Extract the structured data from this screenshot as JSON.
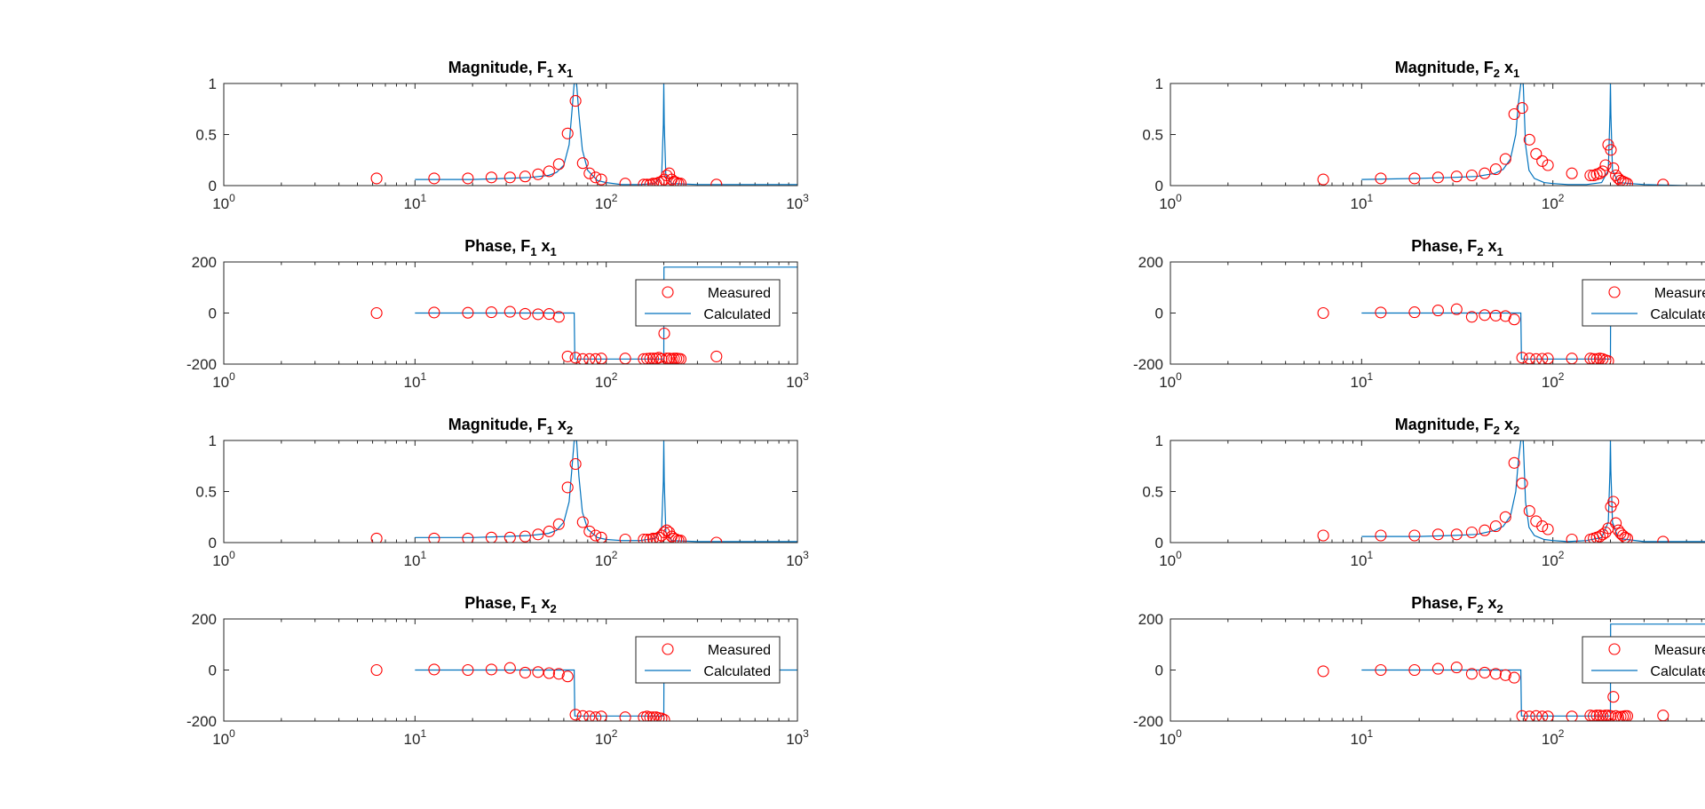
{
  "chart_data": [
    {
      "type": "scatter",
      "title_main": "Magnitude, F",
      "title_f_sub": "1",
      "title_x": " x",
      "title_x_sub": "1",
      "xscale": "log",
      "xlim": [
        1,
        1000
      ],
      "ylim": [
        0,
        1
      ],
      "yticks": [
        "0",
        "0.5",
        "1"
      ],
      "ytick_values": [
        0,
        0.5,
        1
      ],
      "legend": null,
      "measured": {
        "x": [
          6.3,
          12.6,
          18.9,
          25.1,
          31.4,
          37.7,
          44,
          50.3,
          56.5,
          62.8,
          69.1,
          75.4,
          81.7,
          88,
          94.2,
          125.7,
          157.1,
          163.4,
          169.6,
          175.9,
          182.2,
          188.5,
          194.8,
          201.1,
          207.3,
          213.6,
          219.9,
          226.2,
          232.5,
          238.8,
          245,
          377
        ],
        "y": [
          0.07,
          0.07,
          0.07,
          0.08,
          0.08,
          0.09,
          0.11,
          0.14,
          0.21,
          0.51,
          0.83,
          0.22,
          0.12,
          0.08,
          0.06,
          0.02,
          0.01,
          0.01,
          0.01,
          0.02,
          0.02,
          0.03,
          0.04,
          0.06,
          0.1,
          0.12,
          0.06,
          0.04,
          0.03,
          0.02,
          0.02,
          0.01
        ]
      },
      "calculated": {
        "x": [
          10,
          20,
          30,
          40,
          50,
          55,
          60,
          64,
          66,
          68,
          69,
          70,
          72,
          75,
          80,
          90,
          100,
          120,
          150,
          180,
          195,
          199,
          200,
          201,
          205,
          220,
          300,
          500,
          1000
        ],
        "y": [
          0.06,
          0.06,
          0.07,
          0.08,
          0.1,
          0.13,
          0.2,
          0.4,
          0.7,
          1,
          1,
          1,
          0.7,
          0.35,
          0.15,
          0.05,
          0.03,
          0.01,
          0.01,
          0.02,
          0.1,
          0.6,
          1,
          0.6,
          0.1,
          0.02,
          0.01,
          0.01,
          0.01
        ]
      }
    },
    {
      "type": "scatter",
      "title_main": "Magnitude, F",
      "title_f_sub": "2",
      "title_x": " x",
      "title_x_sub": "1",
      "xscale": "log",
      "xlim": [
        1,
        1000
      ],
      "ylim": [
        0,
        1
      ],
      "yticks": [
        "0",
        "0.5",
        "1"
      ],
      "ytick_values": [
        0,
        0.5,
        1
      ],
      "legend": null,
      "measured": {
        "x": [
          6.3,
          12.6,
          18.9,
          25.1,
          31.4,
          37.7,
          44,
          50.3,
          56.5,
          62.8,
          69.1,
          75.4,
          81.7,
          88,
          94.2,
          125.7,
          157.1,
          163.4,
          169.6,
          175.9,
          182.2,
          188.5,
          194.8,
          201.1,
          207.3,
          213.6,
          219.9,
          226.2,
          232.5,
          238.8,
          245,
          377
        ],
        "y": [
          0.06,
          0.07,
          0.07,
          0.08,
          0.09,
          0.1,
          0.12,
          0.16,
          0.26,
          0.7,
          0.76,
          0.45,
          0.31,
          0.24,
          0.2,
          0.12,
          0.1,
          0.1,
          0.11,
          0.12,
          0.14,
          0.2,
          0.4,
          0.35,
          0.17,
          0.1,
          0.07,
          0.05,
          0.04,
          0.03,
          0.02,
          0.01
        ]
      },
      "calculated": {
        "x": [
          10,
          20,
          30,
          40,
          50,
          55,
          60,
          64,
          66,
          68,
          69,
          70,
          72,
          75,
          80,
          90,
          100,
          120,
          150,
          180,
          195,
          199,
          200,
          201,
          205,
          220,
          300,
          500,
          1000
        ],
        "y": [
          0.06,
          0.07,
          0.08,
          0.09,
          0.12,
          0.16,
          0.26,
          0.5,
          0.8,
          1,
          1,
          1,
          0.4,
          0.15,
          0.07,
          0.03,
          0.02,
          0.01,
          0.01,
          0.03,
          0.15,
          0.7,
          1,
          0.7,
          0.15,
          0.03,
          0.01,
          0,
          0
        ]
      }
    },
    {
      "type": "scatter",
      "title_main": "Phase, F",
      "title_f_sub": "1",
      "title_x": " x",
      "title_x_sub": "1",
      "xscale": "log",
      "xlim": [
        1,
        1000
      ],
      "ylim": [
        -200,
        200
      ],
      "yticks": [
        "-200",
        "0",
        "200"
      ],
      "ytick_values": [
        -200,
        0,
        200
      ],
      "legend": {
        "measured": "Measured",
        "calculated": "Calculated"
      },
      "measured": {
        "x": [
          6.3,
          12.6,
          18.9,
          25.1,
          31.4,
          37.7,
          44,
          50.3,
          56.5,
          62.8,
          69.1,
          75.4,
          81.7,
          88,
          94.2,
          125.7,
          157.1,
          163.4,
          169.6,
          175.9,
          182.2,
          188.5,
          194.8,
          201.1,
          207.3,
          213.6,
          219.9,
          226.2,
          232.5,
          238.8,
          245,
          377
        ],
        "y": [
          0,
          2,
          1,
          3,
          5,
          -3,
          -5,
          -4,
          -15,
          -170,
          -175,
          -180,
          -180,
          -180,
          -178,
          -178,
          -180,
          -179,
          -178,
          -178,
          -178,
          -175,
          -180,
          -80,
          -178,
          -178,
          -180,
          -178,
          -178,
          -179,
          -180,
          -170
        ]
      },
      "calculated": {
        "x": [
          10,
          68,
          68.5,
          145,
          145.5,
          200,
          200.5,
          1000
        ],
        "y": [
          0,
          0,
          -180,
          -180,
          -180,
          -180,
          180,
          180
        ]
      }
    },
    {
      "type": "scatter",
      "title_main": "Phase, F",
      "title_f_sub": "2",
      "title_x": " x",
      "title_x_sub": "1",
      "xscale": "log",
      "xlim": [
        1,
        1000
      ],
      "ylim": [
        -200,
        200
      ],
      "yticks": [
        "-200",
        "0",
        "200"
      ],
      "ytick_values": [
        -200,
        0,
        200
      ],
      "legend": {
        "measured": "Measured",
        "calculated": "Calculated"
      },
      "measured": {
        "x": [
          6.3,
          12.6,
          18.9,
          25.1,
          31.4,
          37.7,
          44,
          50.3,
          56.5,
          62.8,
          69.1,
          75.4,
          81.7,
          88,
          94.2,
          125.7,
          157.1,
          163.4,
          169.6,
          175.9,
          182.2,
          188.5,
          194.8
        ],
        "y": [
          0,
          2,
          3,
          10,
          15,
          -15,
          -8,
          -10,
          -12,
          -25,
          -175,
          -178,
          -180,
          -179,
          -178,
          -178,
          -178,
          -180,
          -180,
          -178,
          -180,
          -185,
          -188
        ]
      },
      "calculated": {
        "x": [
          10,
          68,
          68.5,
          200,
          200.5,
          1000
        ],
        "y": [
          0,
          0,
          -180,
          -180,
          0,
          0
        ]
      }
    },
    {
      "type": "scatter",
      "title_main": "Magnitude, F",
      "title_f_sub": "1",
      "title_x": " x",
      "title_x_sub": "2",
      "xscale": "log",
      "xlim": [
        1,
        1000
      ],
      "ylim": [
        0,
        1
      ],
      "yticks": [
        "0",
        "0.5",
        "1"
      ],
      "ytick_values": [
        0,
        0.5,
        1
      ],
      "legend": null,
      "measured": {
        "x": [
          6.3,
          12.6,
          18.9,
          25.1,
          31.4,
          37.7,
          44,
          50.3,
          56.5,
          62.8,
          69.1,
          75.4,
          81.7,
          88,
          94.2,
          125.7,
          157.1,
          163.4,
          169.6,
          175.9,
          182.2,
          188.5,
          194.8,
          201.1,
          207.3,
          213.6,
          219.9,
          226.2,
          232.5,
          238.8,
          245,
          377
        ],
        "y": [
          0.04,
          0.04,
          0.04,
          0.05,
          0.05,
          0.06,
          0.08,
          0.11,
          0.18,
          0.54,
          0.77,
          0.2,
          0.11,
          0.07,
          0.05,
          0.03,
          0.03,
          0.03,
          0.03,
          0.04,
          0.04,
          0.05,
          0.07,
          0.1,
          0.12,
          0.1,
          0.06,
          0.04,
          0.03,
          0.02,
          0.02,
          0
        ]
      },
      "calculated": {
        "x": [
          10,
          20,
          30,
          40,
          50,
          55,
          60,
          64,
          66,
          68,
          69,
          70,
          72,
          75,
          80,
          90,
          100,
          120,
          150,
          180,
          195,
          199,
          200,
          201,
          205,
          220,
          300,
          500,
          1000
        ],
        "y": [
          0.05,
          0.05,
          0.06,
          0.07,
          0.09,
          0.12,
          0.2,
          0.4,
          0.7,
          1,
          1,
          1,
          0.65,
          0.3,
          0.13,
          0.05,
          0.03,
          0.02,
          0.02,
          0.04,
          0.15,
          0.6,
          1,
          0.6,
          0.1,
          0.02,
          0.01,
          0.01,
          0.01
        ]
      }
    },
    {
      "type": "scatter",
      "title_main": "Magnitude, F",
      "title_f_sub": "2",
      "title_x": " x",
      "title_x_sub": "2",
      "xscale": "log",
      "xlim": [
        1,
        1000
      ],
      "ylim": [
        0,
        1
      ],
      "yticks": [
        "0",
        "0.5",
        "1"
      ],
      "ytick_values": [
        0,
        0.5,
        1
      ],
      "legend": null,
      "measured": {
        "x": [
          6.3,
          12.6,
          18.9,
          25.1,
          31.4,
          37.7,
          44,
          50.3,
          56.5,
          62.8,
          69.1,
          75.4,
          81.7,
          88,
          94.2,
          125.7,
          157.1,
          163.4,
          169.6,
          175.9,
          182.2,
          188.5,
          194.8,
          201.1,
          207.3,
          213.6,
          219.9,
          226.2,
          232.5,
          238.8,
          245,
          377
        ],
        "y": [
          0.07,
          0.07,
          0.07,
          0.08,
          0.08,
          0.1,
          0.12,
          0.16,
          0.25,
          0.78,
          0.58,
          0.31,
          0.21,
          0.16,
          0.13,
          0.03,
          0.03,
          0.04,
          0.05,
          0.06,
          0.08,
          0.1,
          0.14,
          0.35,
          0.4,
          0.19,
          0.12,
          0.09,
          0.07,
          0.05,
          0.04,
          0.01
        ]
      },
      "calculated": {
        "x": [
          10,
          20,
          30,
          40,
          50,
          55,
          60,
          64,
          66,
          68,
          69,
          70,
          72,
          75,
          80,
          90,
          100,
          120,
          150,
          180,
          195,
          199,
          200,
          201,
          205,
          220,
          300,
          500,
          1000
        ],
        "y": [
          0.06,
          0.06,
          0.07,
          0.08,
          0.12,
          0.16,
          0.26,
          0.5,
          0.8,
          1,
          1,
          1,
          0.4,
          0.15,
          0.07,
          0.03,
          0.02,
          0.01,
          0.02,
          0.05,
          0.2,
          0.7,
          1,
          0.7,
          0.2,
          0.04,
          0.01,
          0.01,
          0.01
        ]
      }
    },
    {
      "type": "scatter",
      "title_main": "Phase, F",
      "title_f_sub": "1",
      "title_x": " x",
      "title_x_sub": "2",
      "xscale": "log",
      "xlim": [
        1,
        1000
      ],
      "ylim": [
        -200,
        200
      ],
      "yticks": [
        "-200",
        "0",
        "200"
      ],
      "ytick_values": [
        -200,
        0,
        200
      ],
      "legend": {
        "measured": "Measured",
        "calculated": "Calculated"
      },
      "measured": {
        "x": [
          6.3,
          12.6,
          18.9,
          25.1,
          31.4,
          37.7,
          44,
          50.3,
          56.5,
          62.8,
          69.1,
          75.4,
          81.7,
          88,
          94.2,
          125.7,
          157.1,
          163.4,
          169.6,
          175.9,
          182.2,
          188.5,
          194.8,
          201.1
        ],
        "y": [
          0,
          2,
          0,
          2,
          8,
          -10,
          -8,
          -12,
          -15,
          -25,
          -175,
          -180,
          -182,
          -185,
          -182,
          -185,
          -185,
          -182,
          -185,
          -185,
          -185,
          -188,
          -190,
          -195
        ]
      },
      "calculated": {
        "x": [
          10,
          68,
          68.5,
          200,
          200.5,
          1000
        ],
        "y": [
          0,
          0,
          -180,
          -180,
          0,
          0
        ]
      }
    },
    {
      "type": "scatter",
      "title_main": "Phase, F",
      "title_f_sub": "2",
      "title_x": " x",
      "title_x_sub": "2",
      "xscale": "log",
      "xlim": [
        1,
        1000
      ],
      "ylim": [
        -200,
        200
      ],
      "yticks": [
        "-200",
        "0",
        "200"
      ],
      "ytick_values": [
        -200,
        0,
        200
      ],
      "legend": {
        "measured": "Measured",
        "calculated": "Calculated"
      },
      "measured": {
        "x": [
          6.3,
          12.6,
          18.9,
          25.1,
          31.4,
          37.7,
          44,
          50.3,
          56.5,
          62.8,
          69.1,
          75.4,
          81.7,
          88,
          94.2,
          125.7,
          157.1,
          163.4,
          169.6,
          175.9,
          182.2,
          188.5,
          194.8,
          201.1,
          207.3,
          213.6,
          219.9,
          226.2,
          232.5,
          238.8,
          245,
          377
        ],
        "y": [
          -5,
          0,
          0,
          5,
          10,
          -15,
          -10,
          -15,
          -20,
          -30,
          -180,
          -182,
          -180,
          -182,
          -182,
          -182,
          -178,
          -180,
          -178,
          -178,
          -180,
          -178,
          -178,
          -180,
          -105,
          -180,
          -185,
          -183,
          -182,
          -180,
          -180,
          -178
        ]
      },
      "calculated": {
        "x": [
          10,
          68,
          68.5,
          145,
          145.5,
          200,
          200.5,
          1000
        ],
        "y": [
          0,
          0,
          -180,
          -180,
          -180,
          -180,
          180,
          180
        ]
      }
    }
  ],
  "xtick_labels": [
    {
      "base": "10",
      "exp": "0"
    },
    {
      "base": "10",
      "exp": "1"
    },
    {
      "base": "10",
      "exp": "2"
    },
    {
      "base": "10",
      "exp": "3"
    }
  ],
  "colors": {
    "measured": "#ff0000",
    "calculated": "#0072bd",
    "axes": "#262626",
    "background": "#ffffff"
  }
}
